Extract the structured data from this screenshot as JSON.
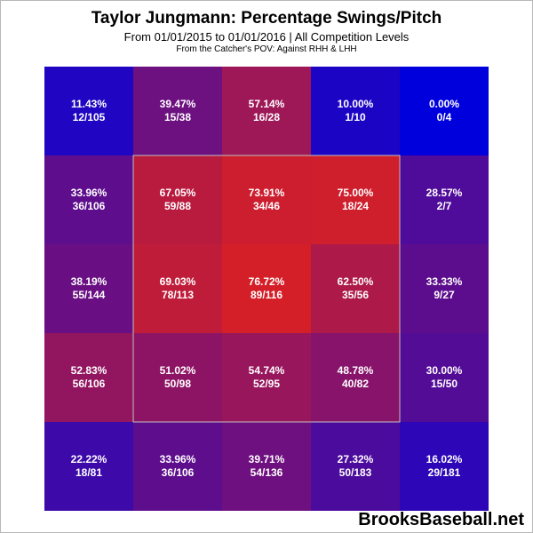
{
  "chart_data": {
    "type": "heatmap",
    "title": "Taylor Jungmann: Percentage Swings/Pitch",
    "subtitle": "From 01/01/2015 to 01/01/2016 | All Competition Levels",
    "subtitle2": "From the Catcher's POV:  Against RHH & LHH",
    "rows": 5,
    "cols": 5,
    "strike_zone": {
      "rows": [
        1,
        3
      ],
      "cols": [
        1,
        3
      ]
    },
    "cells": [
      [
        {
          "pct": "11.43%",
          "count": "12/105",
          "value": 11.43
        },
        {
          "pct": "39.47%",
          "count": "15/38",
          "value": 39.47
        },
        {
          "pct": "57.14%",
          "count": "16/28",
          "value": 57.14
        },
        {
          "pct": "10.00%",
          "count": "1/10",
          "value": 10.0
        },
        {
          "pct": "0.00%",
          "count": "0/4",
          "value": 0.0
        }
      ],
      [
        {
          "pct": "33.96%",
          "count": "36/106",
          "value": 33.96
        },
        {
          "pct": "67.05%",
          "count": "59/88",
          "value": 67.05
        },
        {
          "pct": "73.91%",
          "count": "34/46",
          "value": 73.91
        },
        {
          "pct": "75.00%",
          "count": "18/24",
          "value": 75.0
        },
        {
          "pct": "28.57%",
          "count": "2/7",
          "value": 28.57
        }
      ],
      [
        {
          "pct": "38.19%",
          "count": "55/144",
          "value": 38.19
        },
        {
          "pct": "69.03%",
          "count": "78/113",
          "value": 69.03
        },
        {
          "pct": "76.72%",
          "count": "89/116",
          "value": 76.72
        },
        {
          "pct": "62.50%",
          "count": "35/56",
          "value": 62.5
        },
        {
          "pct": "33.33%",
          "count": "9/27",
          "value": 33.33
        }
      ],
      [
        {
          "pct": "52.83%",
          "count": "56/106",
          "value": 52.83
        },
        {
          "pct": "51.02%",
          "count": "50/98",
          "value": 51.02
        },
        {
          "pct": "54.74%",
          "count": "52/95",
          "value": 54.74
        },
        {
          "pct": "48.78%",
          "count": "40/82",
          "value": 48.78
        },
        {
          "pct": "30.00%",
          "count": "15/50",
          "value": 30.0
        }
      ],
      [
        {
          "pct": "22.22%",
          "count": "18/81",
          "value": 22.22
        },
        {
          "pct": "33.96%",
          "count": "36/106",
          "value": 33.96
        },
        {
          "pct": "39.71%",
          "count": "54/136",
          "value": 39.71
        },
        {
          "pct": "27.32%",
          "count": "50/183",
          "value": 27.32
        },
        {
          "pct": "16.02%",
          "count": "29/181",
          "value": 16.02
        }
      ]
    ],
    "color_scale": {
      "low": "#0000dd",
      "high": "#dd2020"
    },
    "strike_zone_color": "#c0c0c0"
  },
  "watermark": "BrooksBaseball.net"
}
